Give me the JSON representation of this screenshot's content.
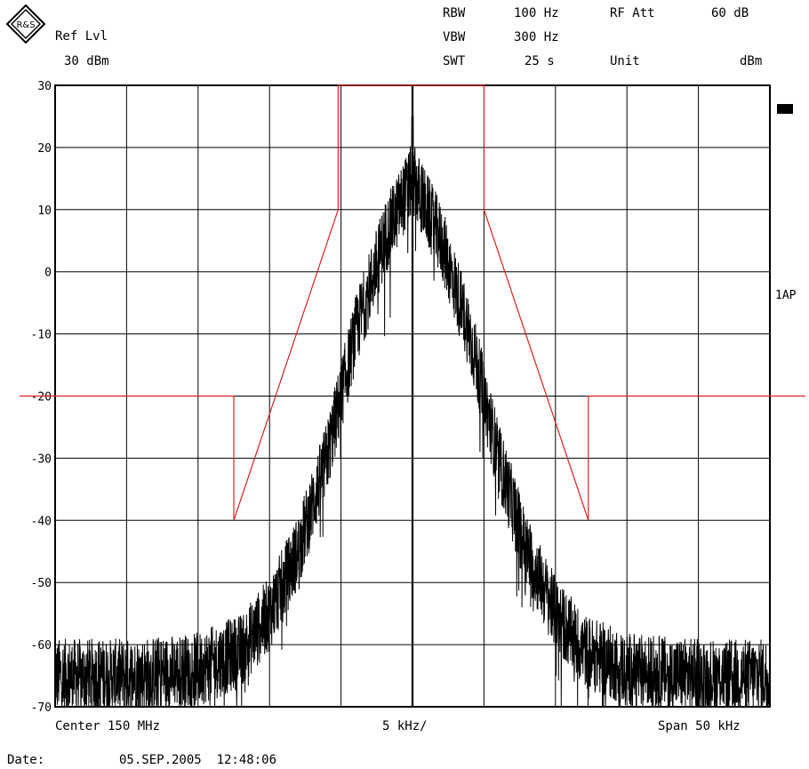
{
  "header": {
    "ref_lvl_label": "Ref Lvl",
    "ref_lvl_value": "30 dBm",
    "rbw_label": "RBW",
    "rbw_value": "100 Hz",
    "vbw_label": "VBW",
    "vbw_value": "300 Hz",
    "swt_label": "SWT",
    "swt_value": "25 s",
    "rf_att_label": "RF Att",
    "rf_att_value": "60 dB",
    "unit_label": "Unit",
    "unit_value": "dBm"
  },
  "logo_text": "R&S",
  "side_label": "1AP",
  "footer": {
    "center": "Center 150 MHz",
    "div": "5 kHz/",
    "span": "Span 50 kHz",
    "date_label": "Date:",
    "date_value": "05.SEP.2005  12:48:06"
  },
  "chart_data": {
    "type": "line",
    "title": "",
    "xlabel": "",
    "ylabel": "",
    "x_unit": "kHz offset from 150 MHz",
    "xlim": [
      -25,
      25
    ],
    "ylim": [
      -70,
      30
    ],
    "yticks": [
      30,
      20,
      10,
      0,
      -10,
      -20,
      -30,
      -40,
      -50,
      -60,
      -70
    ],
    "grid": true,
    "colors": {
      "trace": "#000000",
      "limit": "#e02020",
      "grid": "#000000"
    },
    "series": [
      {
        "kind": "limit_mask",
        "x": [
          -27.5,
          -12.5,
          -12.5,
          -5.2,
          -5.2,
          5.0,
          5.0,
          12.3,
          12.3,
          27.5
        ],
        "y": [
          -20,
          -20,
          -40,
          10,
          30,
          30,
          10,
          -40,
          -20,
          -20
        ]
      },
      {
        "kind": "trace_envelope",
        "x": [
          -25,
          -20,
          -15,
          -12,
          -10,
          -8,
          -6,
          -4,
          -2,
          0,
          2,
          4,
          6,
          8,
          10,
          12,
          15,
          20,
          25
        ],
        "y": [
          -65,
          -65,
          -64,
          -61,
          -55,
          -45,
          -30,
          -10,
          5,
          15,
          5,
          -10,
          -30,
          -45,
          -55,
          -61,
          -64,
          -65,
          -65
        ],
        "peak": {
          "x": 0,
          "y": 25
        }
      }
    ]
  }
}
